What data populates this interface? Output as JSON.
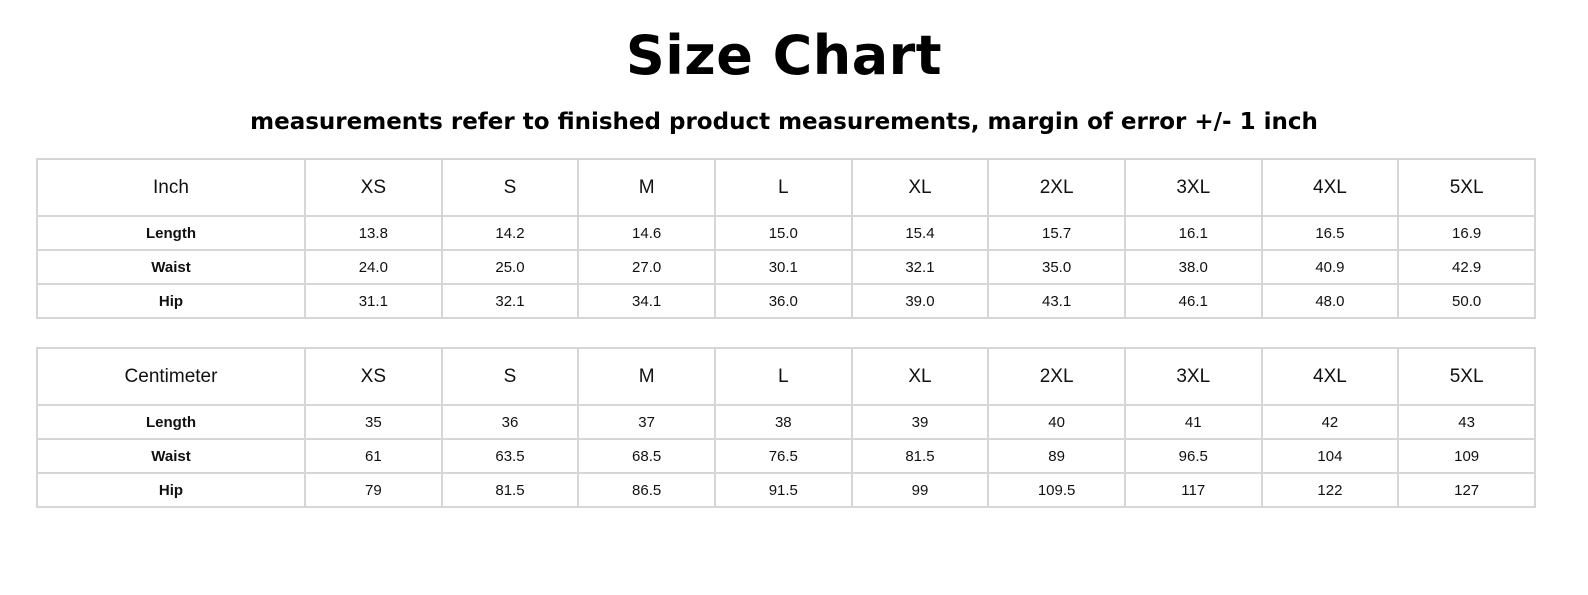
{
  "title": "Size Chart",
  "subtitle": "measurements refer to finished product measurements, margin of error +/- 1 inch",
  "chart_data": [
    {
      "type": "table",
      "unit_header": "Inch",
      "columns": [
        "XS",
        "S",
        "M",
        "L",
        "XL",
        "2XL",
        "3XL",
        "4XL",
        "5XL"
      ],
      "rows": [
        {
          "label": "Length",
          "values": [
            "13.8",
            "14.2",
            "14.6",
            "15.0",
            "15.4",
            "15.7",
            "16.1",
            "16.5",
            "16.9"
          ]
        },
        {
          "label": "Waist",
          "values": [
            "24.0",
            "25.0",
            "27.0",
            "30.1",
            "32.1",
            "35.0",
            "38.0",
            "40.9",
            "42.9"
          ]
        },
        {
          "label": "Hip",
          "values": [
            "31.1",
            "32.1",
            "34.1",
            "36.0",
            "39.0",
            "43.1",
            "46.1",
            "48.0",
            "50.0"
          ]
        }
      ]
    },
    {
      "type": "table",
      "unit_header": "Centimeter",
      "columns": [
        "XS",
        "S",
        "M",
        "L",
        "XL",
        "2XL",
        "3XL",
        "4XL",
        "5XL"
      ],
      "rows": [
        {
          "label": "Length",
          "values": [
            "35",
            "36",
            "37",
            "38",
            "39",
            "40",
            "41",
            "42",
            "43"
          ]
        },
        {
          "label": "Waist",
          "values": [
            "61",
            "63.5",
            "68.5",
            "76.5",
            "81.5",
            "89",
            "96.5",
            "104",
            "109"
          ]
        },
        {
          "label": "Hip",
          "values": [
            "79",
            "81.5",
            "86.5",
            "91.5",
            "99",
            "109.5",
            "117",
            "122",
            "127"
          ]
        }
      ]
    }
  ]
}
